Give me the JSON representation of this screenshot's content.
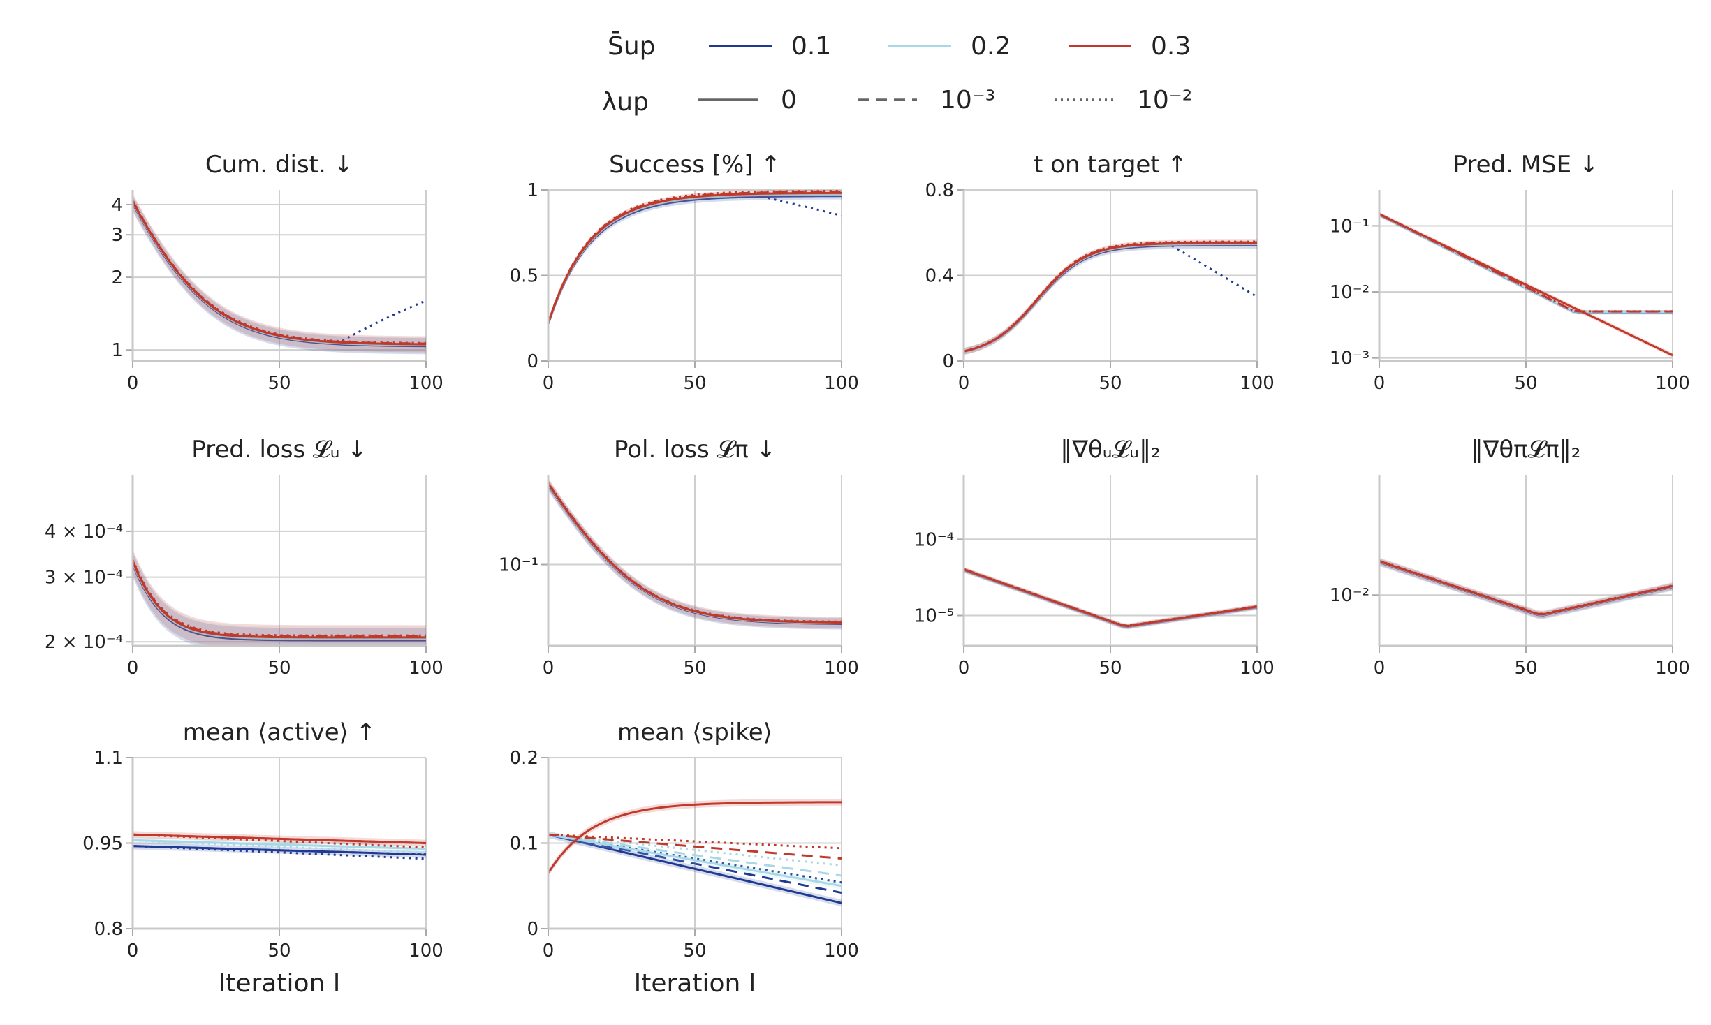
{
  "legend": {
    "s_label": "S̄up",
    "lambda_label": "λup",
    "s_entries": [
      {
        "label": "0.1",
        "color": "#1f3a93"
      },
      {
        "label": "0.2",
        "color": "#a8d8e8"
      },
      {
        "label": "0.3",
        "color": "#c0392b"
      }
    ],
    "lambda_entries": [
      {
        "label": "0",
        "style": "solid"
      },
      {
        "label": "10⁻³",
        "style": "dashed"
      },
      {
        "label": "10⁻²",
        "style": "dotted"
      }
    ]
  },
  "chart_data": [
    {
      "title": "Cum. dist. ↓",
      "type": "line",
      "scale": "log",
      "ylim": [
        0.9,
        4.6
      ],
      "yticks": [
        1,
        2,
        3,
        4
      ],
      "yticklabels": [
        "1",
        "2",
        "3",
        "4"
      ],
      "shape": "decay_flat",
      "start": 4.1,
      "end": 1.05,
      "tail_up": {
        "0.1-dotted": 1.6
      }
    },
    {
      "title": "Success [%] ↑",
      "type": "line",
      "scale": "linear",
      "ylim": [
        0,
        1
      ],
      "yticks": [
        0,
        0.5,
        1
      ],
      "yticklabels": [
        "0",
        "0.5",
        "1"
      ],
      "shape": "rise",
      "start": 0.22,
      "end": 0.98,
      "tail_down": {
        "0.1-dotted": 0.85
      }
    },
    {
      "title": "t on target ↑",
      "type": "line",
      "scale": "linear",
      "ylim": [
        0,
        0.8
      ],
      "yticks": [
        0,
        0.4,
        0.8
      ],
      "yticklabels": [
        "0",
        "0.4",
        "0.8"
      ],
      "shape": "rise_slow",
      "start": 0.02,
      "end": 0.55,
      "tail_down": {
        "0.1-dotted": 0.3
      }
    },
    {
      "title": "Pred. MSE ↓",
      "type": "line",
      "scale": "log",
      "ylim": [
        0.0009,
        0.35
      ],
      "yticks": [
        0.001,
        0.01,
        0.1
      ],
      "yticklabels": [
        "10⁻³",
        "10⁻²",
        "10⁻¹"
      ],
      "shape": "decay_log",
      "start": 0.15,
      "end": 0.005,
      "special_end": {
        "0.3-solid": 0.0011
      }
    },
    {
      "title": "Pred. loss 𝓛ᵤ ↓",
      "type": "line",
      "scale": "log",
      "ylim": [
        0.000195,
        0.00057
      ],
      "yticks": [
        0.0002,
        0.0003,
        0.0004
      ],
      "yticklabels": [
        "2 × 10⁻⁴",
        "3 × 10⁻⁴",
        "4 × 10⁻⁴"
      ],
      "shape": "decay_fast",
      "start": 0.00033,
      "end": 0.000205
    },
    {
      "title": "Pol. loss 𝓛π ↓",
      "type": "line",
      "scale": "log",
      "ylim": [
        0.033,
        0.34
      ],
      "yticks": [
        0.1
      ],
      "yticklabels": [
        "10⁻¹"
      ],
      "shape": "decay_flat",
      "start": 0.3,
      "end": 0.045
    },
    {
      "title": "‖∇θᵤ𝓛ᵤ‖₂",
      "type": "line",
      "scale": "log",
      "ylim": [
        4e-06,
        0.0007
      ],
      "yticks": [
        1e-05,
        0.0001
      ],
      "yticklabels": [
        "10⁻⁵",
        "10⁻⁴"
      ],
      "shape": "valley",
      "start": 4e-05,
      "end": 1.3e-05
    },
    {
      "title": "‖∇θπ𝓛π‖₂",
      "type": "line",
      "scale": "log",
      "ylim": [
        0.0035,
        0.12
      ],
      "yticks": [
        0.01
      ],
      "yticklabels": [
        "10⁻²"
      ],
      "shape": "valley",
      "start": 0.02,
      "end": 0.012
    },
    {
      "title": "mean ⟨active⟩ ↑",
      "type": "line",
      "scale": "linear",
      "ylim": [
        0.8,
        1.1
      ],
      "yticks": [
        0.8,
        0.95,
        1.1
      ],
      "yticklabels": [
        "0.8",
        "0.95",
        "1.1"
      ],
      "shape": "flat",
      "start": 0.96,
      "end": 0.94
    },
    {
      "title": "mean ⟨spike⟩",
      "type": "line",
      "scale": "linear",
      "ylim": [
        0,
        0.2
      ],
      "yticks": [
        0,
        0.1,
        0.2
      ],
      "yticklabels": [
        "0",
        "0.1",
        "0.2"
      ],
      "shape": "spike",
      "start": 0.11,
      "end": 0.07
    }
  ],
  "x_axis": {
    "ticks": [
      0,
      50,
      100
    ],
    "ticklabels": [
      "0",
      "50",
      "100"
    ],
    "label": "Iteration I"
  }
}
